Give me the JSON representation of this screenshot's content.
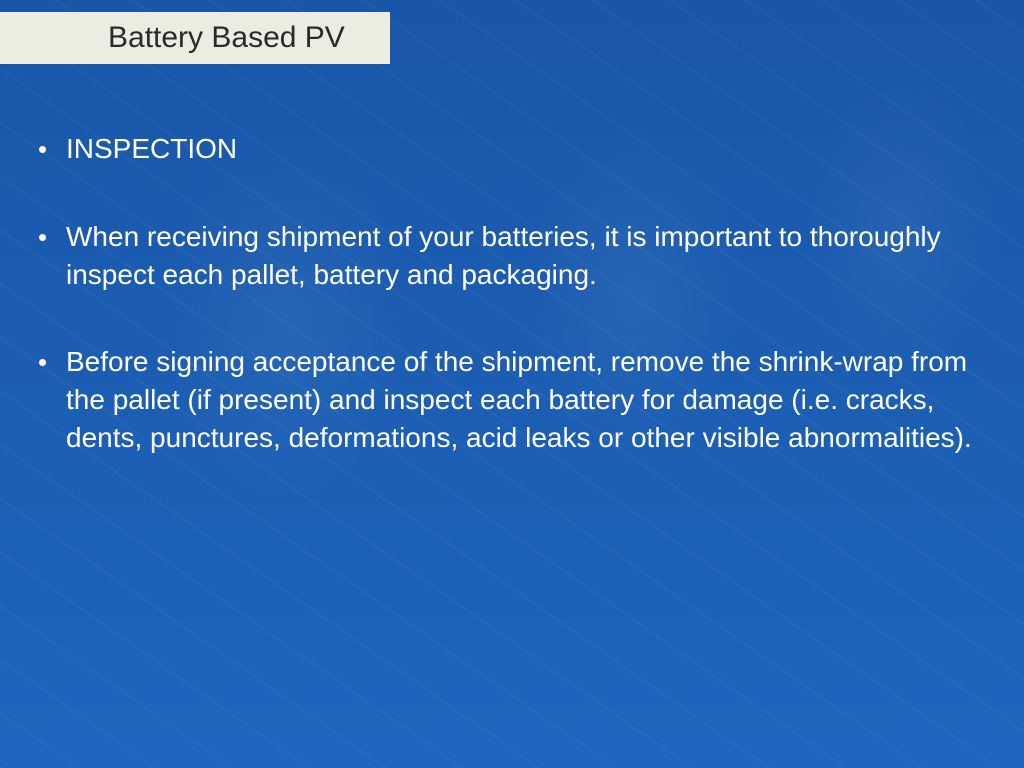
{
  "slide": {
    "title": "Battery Based PV",
    "bullets": [
      "INSPECTION",
      "When receiving shipment of your batteries, it is important to thoroughly inspect each pallet, battery and packaging.",
      "Before signing acceptance of the shipment, remove the shrink-wrap from the pallet (if present) and inspect each battery for damage (i.e. cracks, dents, punctures, deformations, acid leaks or other visible abnormalities)."
    ]
  },
  "style": {
    "background_color": "#1a56a8",
    "title_bar_color": "#ecece0",
    "title_text_color": "#2a2a2a",
    "body_text_color": "#ffffff",
    "title_fontsize": 30,
    "body_fontsize": 28,
    "bullet_char": "•"
  }
}
